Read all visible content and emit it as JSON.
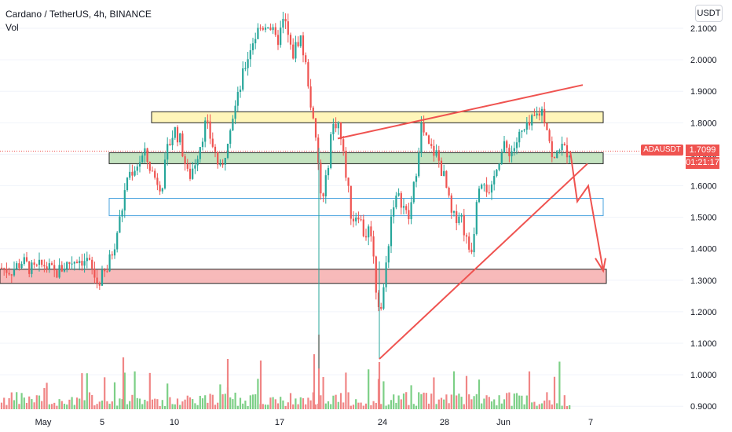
{
  "header": {
    "title": "Cardano / TetherUS, 4h, BINANCE",
    "volume_label": "Vol",
    "currency": "USDT"
  },
  "price_tag": {
    "symbol": "ADAUSDT",
    "price": "1.7099",
    "countdown": "01:21:17",
    "color": "#ef5350"
  },
  "colors": {
    "up": "#26a69a",
    "down": "#ef5350",
    "vol_up": "#7ccf86",
    "vol_down": "#f08585",
    "trend": "#ef5350"
  },
  "chart_data": {
    "type": "candlestick",
    "symbol": "ADAUSDT",
    "interval": "4h",
    "exchange": "BINANCE",
    "y_ticks": [
      "2.1000",
      "2.0000",
      "1.9000",
      "1.8000",
      "1.7000",
      "1.6000",
      "1.5000",
      "1.4000",
      "1.3000",
      "1.2000",
      "1.1000",
      "1.0000",
      "0.9000"
    ],
    "x_ticks": [
      "May",
      "5",
      "10",
      "17",
      "24",
      "28",
      "Jun",
      "7"
    ],
    "ylim": [
      0.9,
      2.13
    ],
    "last_price": 1.7099,
    "price_path": [
      [
        0,
        1.34
      ],
      [
        14,
        1.33
      ],
      [
        28,
        1.36
      ],
      [
        42,
        1.33
      ],
      [
        56,
        1.35
      ],
      [
        70,
        1.32
      ],
      [
        84,
        1.35
      ],
      [
        98,
        1.37
      ],
      [
        112,
        1.36
      ],
      [
        124,
        1.29
      ],
      [
        136,
        1.33
      ],
      [
        146,
        1.42
      ],
      [
        155,
        1.52
      ],
      [
        162,
        1.63
      ],
      [
        172,
        1.66
      ],
      [
        184,
        1.7
      ],
      [
        196,
        1.63
      ],
      [
        206,
        1.6
      ],
      [
        214,
        1.72
      ],
      [
        222,
        1.78
      ],
      [
        230,
        1.74
      ],
      [
        240,
        1.62
      ],
      [
        250,
        1.69
      ],
      [
        262,
        1.8
      ],
      [
        272,
        1.72
      ],
      [
        282,
        1.63
      ],
      [
        292,
        1.79
      ],
      [
        302,
        1.87
      ],
      [
        312,
        1.98
      ],
      [
        320,
        2.05
      ],
      [
        330,
        2.1
      ],
      [
        342,
        2.12
      ],
      [
        352,
        2.05
      ],
      [
        362,
        2.13
      ],
      [
        372,
        2.01
      ],
      [
        382,
        2.08
      ],
      [
        392,
        1.94
      ],
      [
        398,
        1.81
      ],
      [
        404,
        1.7
      ],
      [
        410,
        1.53
      ],
      [
        416,
        1.63
      ],
      [
        422,
        1.78
      ],
      [
        430,
        1.81
      ],
      [
        440,
        1.65
      ],
      [
        448,
        1.49
      ],
      [
        456,
        1.52
      ],
      [
        464,
        1.44
      ],
      [
        472,
        1.47
      ],
      [
        480,
        1.24
      ],
      [
        486,
        1.21
      ],
      [
        492,
        1.36
      ],
      [
        500,
        1.55
      ],
      [
        510,
        1.56
      ],
      [
        520,
        1.49
      ],
      [
        528,
        1.61
      ],
      [
        536,
        1.79
      ],
      [
        546,
        1.72
      ],
      [
        556,
        1.7
      ],
      [
        566,
        1.62
      ],
      [
        576,
        1.49
      ],
      [
        586,
        1.52
      ],
      [
        596,
        1.4
      ],
      [
        602,
        1.41
      ],
      [
        608,
        1.61
      ],
      [
        616,
        1.63
      ],
      [
        624,
        1.55
      ],
      [
        632,
        1.67
      ],
      [
        642,
        1.72
      ],
      [
        652,
        1.71
      ],
      [
        662,
        1.76
      ],
      [
        672,
        1.78
      ],
      [
        682,
        1.82
      ],
      [
        690,
        1.84
      ],
      [
        698,
        1.78
      ],
      [
        704,
        1.66
      ],
      [
        712,
        1.73
      ],
      [
        720,
        1.71
      ],
      [
        726,
        1.71
      ]
    ],
    "zones": [
      {
        "name": "resistance",
        "from": 1.8,
        "to": 1.835,
        "fill": "#fff3a8"
      },
      {
        "name": "support-1",
        "from": 1.67,
        "to": 1.705,
        "fill": "#b5dcb0"
      },
      {
        "name": "support-2",
        "from": 1.505,
        "to": 1.56,
        "fill": "#ffffff"
      },
      {
        "name": "support-3",
        "from": 1.29,
        "to": 1.335,
        "fill": "#f5a9a9"
      }
    ]
  }
}
